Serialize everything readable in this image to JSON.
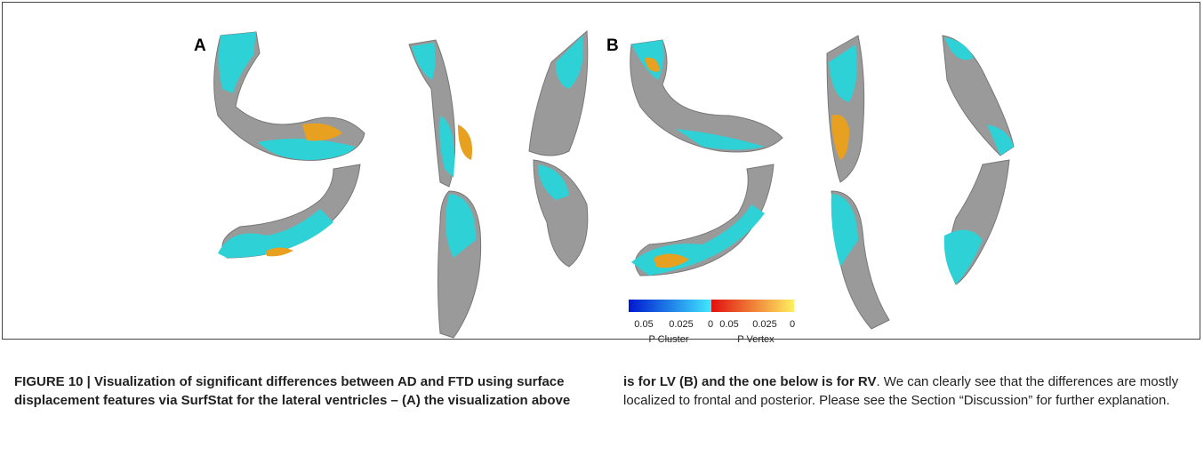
{
  "figure": {
    "panels": [
      "A",
      "B"
    ],
    "colorbar": {
      "cluster_ticks": [
        "0.05",
        "0.025",
        "0"
      ],
      "vertex_ticks": [
        "0.05",
        "0.025",
        "0"
      ],
      "cluster_label": "P Cluster",
      "vertex_label": "P Vertex"
    }
  },
  "caption": {
    "bold": "FIGURE 10 | Visualization of significant differences between AD and FTD using surface displacement features via SurfStat for the lateral ventricles – (A) the visualization above is for LV (B) and the one below is for RV",
    "text": ". We can clearly see that the differences are mostly localized to frontal and posterior. Please see the Section “Discussion” for further explanation."
  }
}
